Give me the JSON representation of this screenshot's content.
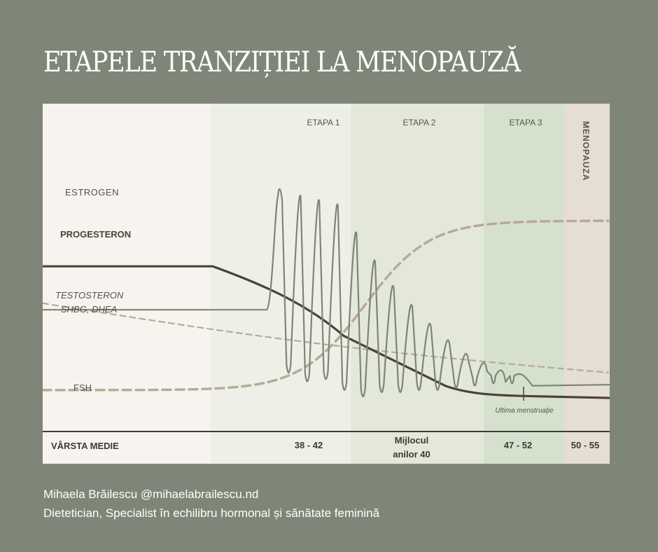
{
  "title": "ETAPELE TRANZIȚIEI LA MENOPAUZĂ",
  "chart_data": {
    "type": "line",
    "x_axis_label": "VÂRSTA MEDIE",
    "stages": [
      {
        "label": "",
        "age": "",
        "color": "#f7f3ee"
      },
      {
        "label": "ETAPA 1",
        "age": "38 - 42",
        "color": "#eef0e7"
      },
      {
        "label": "ETAPA 2",
        "age_lines": [
          "Mijlocul",
          "anilor 40"
        ],
        "color": "#e3e8da"
      },
      {
        "label": "ETAPA 3",
        "age": "47 - 52",
        "color": "#d6e1cd"
      },
      {
        "label": "MENOPAUZA",
        "age": "50 - 55",
        "color": "#e6ddd4"
      }
    ],
    "series": [
      {
        "name": "ESTROGEN",
        "style": "oscillating",
        "color": "#7c8677"
      },
      {
        "name": "PROGESTERON",
        "style": "solid-thick",
        "color": "#4a4238"
      },
      {
        "name_lines": [
          "TESTOSTERON",
          "SHBG, DHEA"
        ],
        "style": "dashed-thin",
        "color": "#b7ab95"
      },
      {
        "name": "FSH",
        "style": "dashed-thick",
        "color": "#b7ab95"
      }
    ],
    "annotation": "Ultima menstruație",
    "level_scale": "relative 0-100, no printed axis",
    "estrogen_peaks": [
      92,
      93,
      91,
      89,
      76,
      63,
      51,
      42,
      33,
      25,
      18,
      13,
      8
    ]
  },
  "footer": {
    "line1": "Mihaela Brăilescu @mihaelabrailescu.nd",
    "line2": "Dietetician, Specialist în echilibru hormonal și sănătate feminină"
  }
}
